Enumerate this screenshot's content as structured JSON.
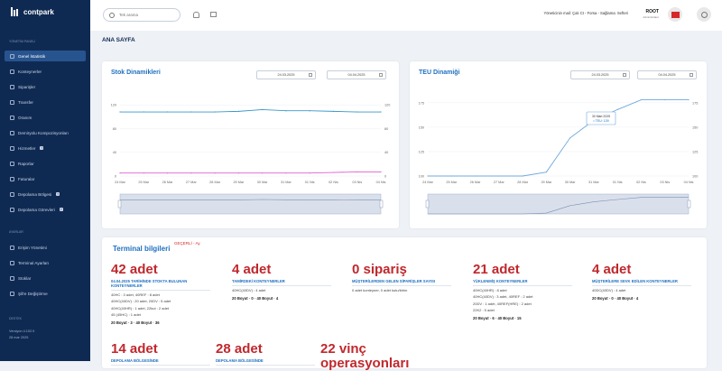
{
  "app": {
    "brand": "contpark",
    "page_title": "ANA SAYFA"
  },
  "topbar": {
    "search_placeholder": "Tek arama",
    "customer_text": "Yöneticinin mail: Çalı Ct - Forsa - Sağlama: Sefteri",
    "user_name": "ROOT",
    "user_role": "Administrator"
  },
  "sidebar": {
    "section_main": "YÖNETİM PANELİ",
    "items": [
      {
        "label": "Genel İstatistik",
        "badge": ""
      },
      {
        "label": "Konteynerler",
        "badge": ""
      },
      {
        "label": "Siparişler",
        "badge": ""
      },
      {
        "label": "Transfer",
        "badge": ""
      },
      {
        "label": "Oranım",
        "badge": ""
      },
      {
        "label": "Demiryolu Kompozisyonları",
        "badge": ""
      },
      {
        "label": "Hizmetler",
        "badge": "Y"
      },
      {
        "label": "Raporlar",
        "badge": ""
      },
      {
        "label": "Faturalar",
        "badge": ""
      },
      {
        "label": "Depolama Bölgesi",
        "badge": "Y"
      },
      {
        "label": "Depolama Görevleri",
        "badge": "Y"
      }
    ],
    "section_settings": "AYARLAR",
    "settings_items": [
      {
        "label": "Erişim Yönetimi",
        "badge": ""
      },
      {
        "label": "Terminal Ayarları",
        "badge": ""
      },
      {
        "label": "Stoklar",
        "badge": ""
      },
      {
        "label": "Şifre Değiştirme",
        "badge": ""
      }
    ],
    "footer_label": "Destek",
    "version": "Versiyon 4.102.9",
    "version_date": "28 mar 2025"
  },
  "stock_card": {
    "title": "Stok Dinamikleri",
    "date_from": "24.03.2025",
    "date_to": "04.04.2025"
  },
  "teu_card": {
    "title": "TEU Dinamiği",
    "date_from": "24.03.2025",
    "date_to": "04.04.2025",
    "tooltip_date": "30 Mart 2025",
    "tooltip_value": "• TEU: 139"
  },
  "chart_data": [
    {
      "type": "line",
      "title": "Stok Dinamikleri",
      "x": [
        "24 Mar",
        "25 Mar",
        "26 Mar",
        "27 Mar",
        "28 Mar",
        "29 Mar",
        "30 Mar",
        "31 Mar",
        "01 Nis",
        "02 Nis",
        "03 Nis",
        "04 Nis"
      ],
      "yticks_left": [
        "120",
        "80",
        "40",
        "0"
      ],
      "yticks_right": [
        "120",
        "80",
        "40",
        "0"
      ],
      "ylim": [
        0,
        140
      ],
      "series": [
        {
          "color": "#3a97c9",
          "values": [
            108,
            108,
            108,
            108,
            108,
            109,
            112,
            110,
            110,
            109,
            108,
            108
          ]
        },
        {
          "color": "#e05fd2",
          "values": [
            5,
            5,
            5,
            5,
            5,
            5,
            5,
            5,
            5,
            6,
            7,
            7
          ]
        }
      ]
    },
    {
      "type": "line",
      "title": "TEU Dinamiği",
      "x": [
        "24 Mar",
        "25 Mar",
        "26 Mar",
        "27 Mar",
        "28 Mar",
        "29 Mar",
        "30 Mar",
        "31 Mar",
        "01 Nis",
        "02 Nis",
        "03 Nis",
        "04 Nis"
      ],
      "yticks_left": [
        "175",
        "150",
        "125",
        "100"
      ],
      "yticks_right": [
        "175",
        "150",
        "125",
        "100"
      ],
      "ylim": [
        100,
        185
      ],
      "series": [
        {
          "color": "#6fa8dc",
          "values": [
            100,
            100,
            100,
            100,
            100,
            104,
            139,
            157,
            168,
            178,
            178,
            178
          ]
        }
      ]
    }
  ],
  "terminal": {
    "title": "Terminal bilgileri",
    "tag": "GEÇERLİ - Ay",
    "stats": [
      {
        "value": "42 adet",
        "label": "04.04.2025 TARİHİNDE STOKTA BULUNAN KONTEYNERLER",
        "lines": [
          "40HC : 3 adet, 40REF : 8 adet",
          "40HC(40DV) : 20 adet, 20DV : 5 adet",
          "40HC(40HR) : 1 adet, 22kut : 2 adet",
          "45 (45HC) : 1 adet"
        ],
        "foot": "20 Boyut · 3 · 40 Boyut · 36"
      },
      {
        "value": "4 adet",
        "label": "TAMİRDEKİ KONTEYNERLER",
        "lines": [
          "40HC(40DV) : 4 adet"
        ],
        "foot": "20 Boyut · 0 · 40 Boyut · 4"
      },
      {
        "value": "0 sipariş",
        "label": "MÜŞTERİLERDEN GELEN SİPARİŞLER SAYISI",
        "lines": [
          "0 adet konteyner, 0 adet kutu/birim"
        ],
        "foot": ""
      },
      {
        "value": "21 adet",
        "label": "YÜKLENMİŞ KONTEYNERLER",
        "lines": [
          "40HC(40HR) : 8 adet",
          "40HC(40DV) : 3 adet, 40REF : 2 adet",
          "20DV : 1 adet, 40REF(HRE) : 2 adet",
          "22K2 : 5 adet"
        ],
        "foot": "20 Boyut · 6 · 40 Boyut · 15"
      },
      {
        "value": "4 adet",
        "label": "MÜŞTERİLERE SEVK EDİLEN KONTEYNERLER",
        "lines": [
          "40DC(40DV) : 4 adet"
        ],
        "foot": "20 Boyut · 0 · 40 Boyut · 4"
      },
      {
        "value": "14 adet",
        "label": "DEPOLAMA BÖLGESİNDE",
        "lines": [],
        "foot": ""
      },
      {
        "value": "28 adet",
        "label": "DEPOLAMA BÖLGESİNDE",
        "lines": [],
        "foot": ""
      },
      {
        "value": "22 vinç operasyonları",
        "label": "",
        "lines": [],
        "foot": ""
      }
    ]
  }
}
